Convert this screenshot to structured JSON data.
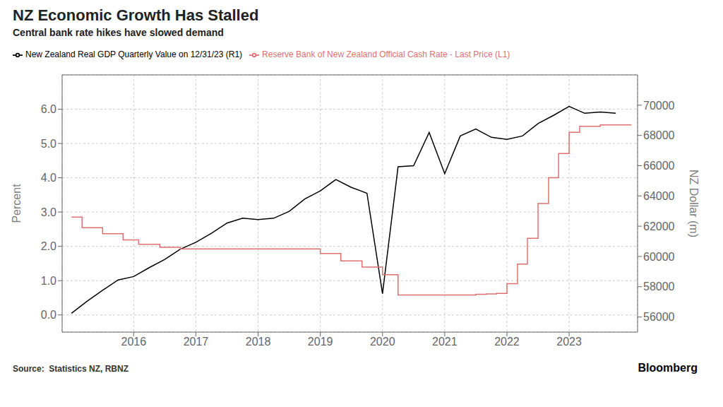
{
  "chart_data": {
    "type": "line",
    "title": "NZ Economic Growth Has Stalled",
    "subtitle": "Central bank rate hikes have slowed demand",
    "annotations": [
      "Source:  Statistics NZ, RBNZ",
      "Bloomberg"
    ],
    "ylabel": "Percent",
    "y2label": "NZ Dollar (m)",
    "xlim": [
      2014.85,
      2024.1
    ],
    "xticks": [
      2016,
      2017,
      2018,
      2019,
      2020,
      2021,
      2022,
      2023
    ],
    "ylim": [
      -0.5,
      7.0
    ],
    "yticks": [
      {
        "value": 0.0,
        "label": "0.0"
      },
      {
        "value": 1.0,
        "label": "1.0"
      },
      {
        "value": 2.0,
        "label": "2.0"
      },
      {
        "value": 3.0,
        "label": "3.0"
      },
      {
        "value": 4.0,
        "label": "4.0"
      },
      {
        "value": 5.0,
        "label": "5.0"
      },
      {
        "value": 6.0,
        "label": "6.0"
      }
    ],
    "y2lim": [
      55000,
      72000
    ],
    "y2ticks": [
      56000,
      58000,
      60000,
      62000,
      64000,
      66000,
      68000,
      70000
    ],
    "grid": true,
    "legend": "upper left",
    "series": [
      {
        "name": "New Zealand Real GDP Quarterly Value on 12/31/23 (R1)",
        "color": "#000000",
        "x": [
          2015.0,
          2015.25,
          2015.5,
          2015.75,
          2016.0,
          2016.25,
          2016.5,
          2016.75,
          2017.0,
          2017.25,
          2017.5,
          2017.75,
          2018.0,
          2018.25,
          2018.5,
          2018.75,
          2019.0,
          2019.25,
          2019.5,
          2019.75,
          2020.0,
          2020.25,
          2020.5,
          2020.75,
          2021.0,
          2021.25,
          2021.5,
          2021.75,
          2022.0,
          2022.25,
          2022.5,
          2022.75,
          2023.0,
          2023.25,
          2023.5,
          2023.75
        ],
        "values": [
          0.05,
          0.4,
          0.72,
          1.02,
          1.12,
          1.38,
          1.62,
          1.92,
          2.12,
          2.38,
          2.68,
          2.82,
          2.78,
          2.82,
          3.02,
          3.38,
          3.62,
          3.95,
          3.72,
          3.55,
          0.62,
          4.32,
          4.35,
          5.32,
          4.12,
          5.22,
          5.42,
          5.18,
          5.12,
          5.22,
          5.58,
          5.82,
          6.08,
          5.88,
          5.92,
          5.88
        ]
      },
      {
        "name": "Reserve Bank of New Zealand Official Cash Rate - Last Price (L1)",
        "color": "#e07070",
        "axis": "y2",
        "x": [
          2015.0,
          2015.17,
          2015.17,
          2015.5,
          2015.5,
          2015.83,
          2015.83,
          2016.08,
          2016.08,
          2016.42,
          2016.42,
          2016.75,
          2016.75,
          2019.0,
          2019.0,
          2019.33,
          2019.33,
          2019.67,
          2019.67,
          2020.0,
          2020.0,
          2020.25,
          2020.25,
          2021.5,
          2021.5,
          2021.67,
          2021.67,
          2021.83,
          2021.83,
          2022.0,
          2022.0,
          2022.17,
          2022.17,
          2022.33,
          2022.33,
          2022.5,
          2022.5,
          2022.67,
          2022.67,
          2022.83,
          2022.83,
          2023.0,
          2023.0,
          2023.17,
          2023.17,
          2023.5,
          2023.5,
          2024.0
        ],
        "values": [
          62600,
          62600,
          61900,
          61900,
          61500,
          61500,
          61100,
          61100,
          60800,
          60800,
          60600,
          60600,
          60500,
          60500,
          60200,
          60200,
          59700,
          59700,
          59300,
          59300,
          58800,
          58800,
          57450,
          57450,
          57500,
          57500,
          57520,
          57520,
          57560,
          57560,
          58200,
          58200,
          59500,
          59500,
          61200,
          61200,
          63500,
          63500,
          65200,
          65200,
          66800,
          66800,
          68200,
          68200,
          68600,
          68600,
          68700,
          68700
        ]
      }
    ]
  }
}
